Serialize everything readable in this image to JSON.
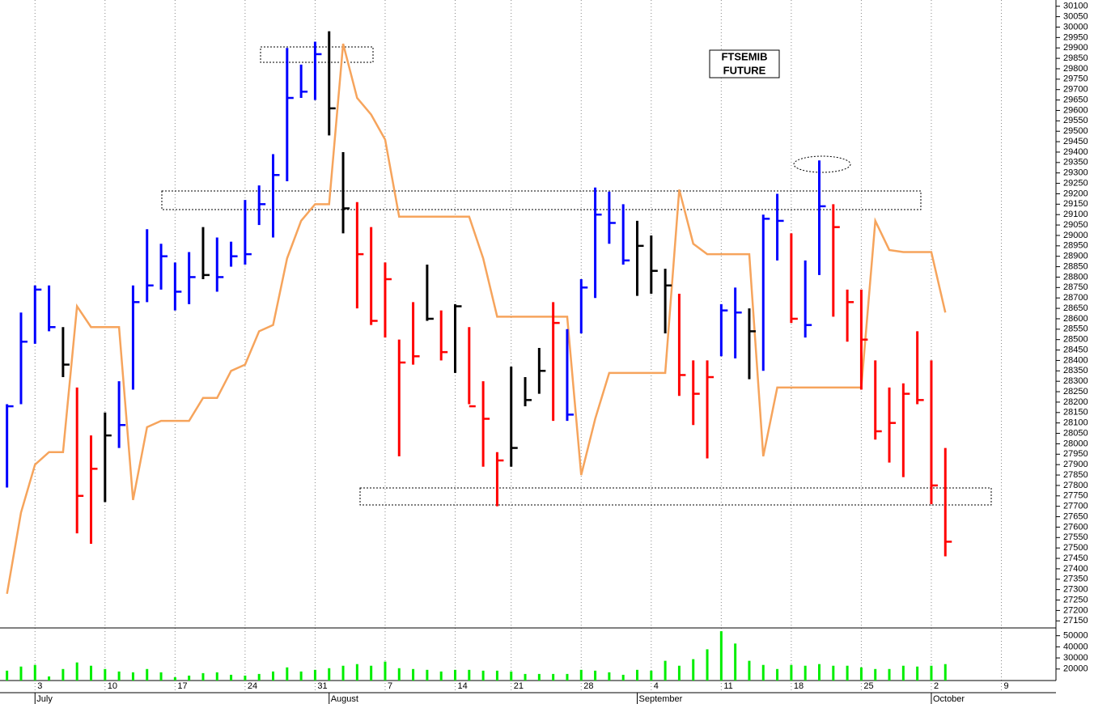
{
  "chart_data": [
    {
      "type": "ohlc",
      "title_lines": [
        "FTSEMIB",
        "FUTURE"
      ],
      "x": [
        0,
        1,
        2,
        3,
        4,
        5,
        6,
        7,
        8,
        9,
        10,
        11,
        12,
        13,
        14,
        15,
        16,
        17,
        18,
        19,
        20,
        21,
        22,
        23,
        24,
        25,
        26,
        27,
        28,
        29,
        30,
        31,
        32,
        33,
        34,
        35,
        36,
        37,
        38,
        39,
        40,
        41,
        42,
        43,
        44,
        45,
        46,
        47,
        48,
        49,
        50,
        51,
        52,
        53,
        54,
        55,
        56,
        57,
        58,
        59,
        60,
        61,
        62,
        63,
        64,
        65,
        66,
        67
      ],
      "high": [
        28190,
        28630,
        28760,
        28760,
        28560,
        28270,
        28040,
        28150,
        28300,
        28760,
        29030,
        28960,
        28870,
        28920,
        29040,
        28990,
        28970,
        29170,
        29240,
        29390,
        29900,
        29820,
        29930,
        29980,
        29400,
        29160,
        29040,
        28870,
        28500,
        28680,
        28860,
        28640,
        28670,
        28560,
        28300,
        27960,
        28370,
        28320,
        28460,
        28680,
        28550,
        28790,
        29230,
        29210,
        29150,
        29070,
        29000,
        28840,
        28720,
        28400,
        28400,
        28670,
        28750,
        28650,
        29100,
        29200,
        29010,
        28880,
        29360,
        29150,
        28740,
        28740,
        28400,
        28270,
        28290,
        28540,
        28400,
        27980
      ],
      "low": [
        27790,
        28190,
        28480,
        28540,
        28320,
        27570,
        27520,
        27720,
        27980,
        28260,
        28680,
        28740,
        28640,
        28670,
        28790,
        28730,
        28850,
        28860,
        29050,
        28990,
        29260,
        29660,
        29650,
        29480,
        29010,
        28650,
        28570,
        28510,
        27940,
        28380,
        28590,
        28400,
        28340,
        28190,
        27890,
        27700,
        27890,
        28180,
        28240,
        28110,
        28110,
        28530,
        28700,
        28960,
        28860,
        28710,
        28720,
        28530,
        28230,
        28090,
        27930,
        28420,
        28410,
        28310,
        28350,
        28880,
        28580,
        28510,
        28810,
        28610,
        28490,
        28260,
        28020,
        27910,
        27840,
        28190,
        27710,
        27460
      ],
      "close": [
        28180,
        28490,
        28740,
        28560,
        28380,
        27750,
        27880,
        28040,
        28090,
        28680,
        28760,
        28900,
        28730,
        28800,
        28810,
        28800,
        28900,
        28910,
        29150,
        29290,
        29660,
        29690,
        29870,
        29610,
        29130,
        28910,
        28590,
        28790,
        28390,
        28420,
        28600,
        28440,
        28660,
        28180,
        28120,
        27920,
        27980,
        28210,
        28350,
        28580,
        28140,
        28750,
        29100,
        29060,
        28880,
        28950,
        28830,
        28760,
        28330,
        28240,
        28320,
        28640,
        28630,
        28540,
        29080,
        29070,
        28600,
        28570,
        29140,
        29040,
        28680,
        28500,
        28060,
        28100,
        28240,
        28210,
        27800,
        27530
      ],
      "bar_colors": [
        "#0000ff",
        "#0000ff",
        "#0000ff",
        "#0000ff",
        "#000000",
        "#ff0000",
        "#ff0000",
        "#000000",
        "#0000ff",
        "#0000ff",
        "#0000ff",
        "#0000ff",
        "#0000ff",
        "#0000ff",
        "#000000",
        "#0000ff",
        "#0000ff",
        "#0000ff",
        "#0000ff",
        "#0000ff",
        "#0000ff",
        "#0000ff",
        "#0000ff",
        "#000000",
        "#000000",
        "#ff0000",
        "#ff0000",
        "#ff0000",
        "#ff0000",
        "#ff0000",
        "#000000",
        "#ff0000",
        "#000000",
        "#ff0000",
        "#ff0000",
        "#ff0000",
        "#000000",
        "#000000",
        "#000000",
        "#ff0000",
        "#0000ff",
        "#0000ff",
        "#0000ff",
        "#0000ff",
        "#0000ff",
        "#000000",
        "#000000",
        "#000000",
        "#ff0000",
        "#ff0000",
        "#ff0000",
        "#0000ff",
        "#0000ff",
        "#000000",
        "#0000ff",
        "#0000ff",
        "#ff0000",
        "#0000ff",
        "#0000ff",
        "#ff0000",
        "#ff0000",
        "#ff0000",
        "#ff0000",
        "#ff0000",
        "#ff0000",
        "#ff0000",
        "#ff0000",
        "#ff0000"
      ],
      "line": {
        "color": "#f6a45c",
        "values": [
          27280,
          27670,
          27900,
          27960,
          27960,
          28660,
          28560,
          28560,
          28560,
          27730,
          28080,
          28110,
          28110,
          28110,
          28220,
          28220,
          28350,
          28380,
          28540,
          28570,
          28890,
          29070,
          29150,
          29150,
          29920,
          29660,
          29580,
          29460,
          29090,
          29090,
          29090,
          29090,
          29090,
          29090,
          28890,
          28610,
          28610,
          28610,
          28610,
          28610,
          28610,
          27850,
          28120,
          28340,
          28340,
          28340,
          28340,
          28340,
          29220,
          28960,
          28910,
          28910,
          28910,
          28910,
          27940,
          28270,
          28270,
          28270,
          28270,
          28270,
          28270,
          28270,
          29070,
          28930,
          28920,
          28920,
          28920,
          28630
        ]
      },
      "xlim": [
        -0.5,
        74.9
      ],
      "xticks": [
        {
          "value": 2,
          "label": "3"
        },
        {
          "value": 7,
          "label": "10"
        },
        {
          "value": 12,
          "label": "17"
        },
        {
          "value": 17,
          "label": "24"
        },
        {
          "value": 22,
          "label": "31"
        },
        {
          "value": 27,
          "label": "7"
        },
        {
          "value": 32,
          "label": "14"
        },
        {
          "value": 36,
          "label": "21"
        },
        {
          "value": 41,
          "label": "28"
        },
        {
          "value": 46,
          "label": "4"
        },
        {
          "value": 51,
          "label": "11"
        },
        {
          "value": 56,
          "label": "18"
        },
        {
          "value": 61,
          "label": "25"
        },
        {
          "value": 66,
          "label": "2"
        },
        {
          "value": 71,
          "label": "9"
        }
      ],
      "month_ticks": [
        {
          "value": 2,
          "label": "July"
        },
        {
          "value": 23,
          "label": "August"
        },
        {
          "value": 45,
          "label": "September"
        },
        {
          "value": 66,
          "label": "October"
        }
      ],
      "ylim": [
        27120,
        30130
      ],
      "yticks": [
        27150,
        27200,
        27250,
        27300,
        27350,
        27400,
        27450,
        27500,
        27550,
        27600,
        27650,
        27700,
        27750,
        27800,
        27850,
        27900,
        27950,
        28000,
        28050,
        28100,
        28150,
        28200,
        28250,
        28300,
        28350,
        28400,
        28450,
        28500,
        28550,
        28600,
        28650,
        28700,
        28750,
        28800,
        28850,
        28900,
        28950,
        29000,
        29050,
        29100,
        29150,
        29200,
        29250,
        29300,
        29350,
        29400,
        29450,
        29500,
        29550,
        29600,
        29650,
        29700,
        29750,
        29800,
        29850,
        29900,
        29950,
        30000,
        30050,
        30100
      ]
    },
    {
      "type": "bar",
      "color": "#00ee00",
      "values": [
        18520,
        22220,
        23700,
        13330,
        20000,
        25930,
        22960,
        20000,
        17780,
        17040,
        20000,
        17040,
        12590,
        14070,
        16300,
        17040,
        14810,
        14070,
        15560,
        17780,
        21480,
        17780,
        19260,
        20740,
        22960,
        24440,
        22960,
        26670,
        20740,
        20000,
        19260,
        17780,
        19260,
        19260,
        18520,
        18520,
        17780,
        15560,
        15560,
        15560,
        15560,
        19260,
        18520,
        17040,
        14810,
        19260,
        18520,
        27410,
        22960,
        28890,
        37780,
        54070,
        42960,
        27410,
        23700,
        20000,
        23700,
        22960,
        24440,
        22960,
        22960,
        21480,
        20000,
        20000,
        22960,
        22220,
        22960,
        24440
      ],
      "ylim": [
        9630,
        56300
      ],
      "yticks": [
        20000,
        30000,
        40000,
        50000
      ]
    }
  ]
}
